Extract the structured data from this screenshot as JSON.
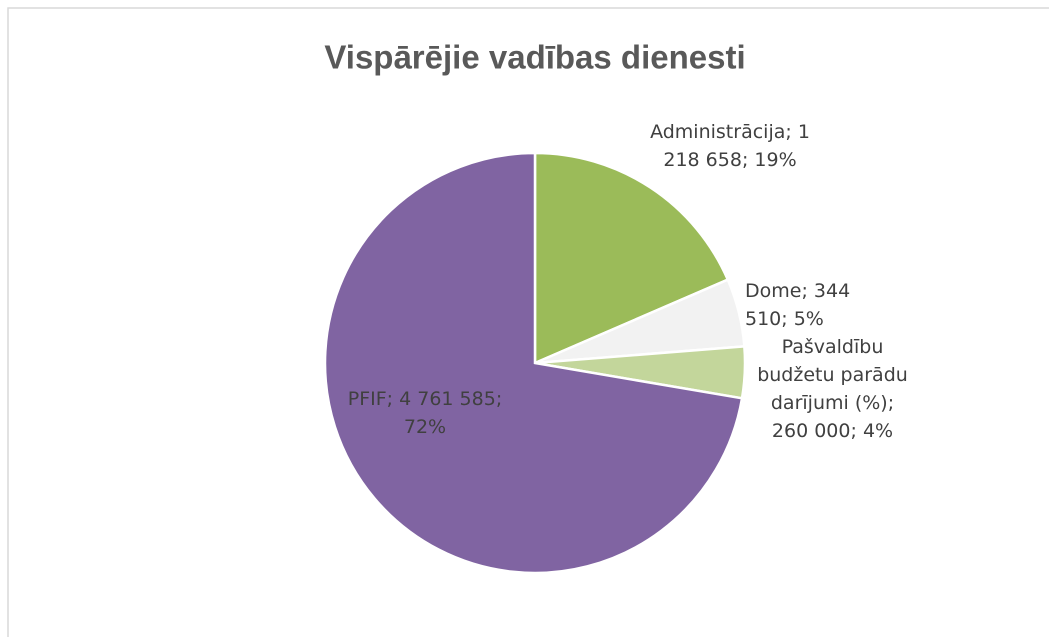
{
  "chart_data": {
    "type": "pie",
    "title": "Vispārējie vadības dienesti",
    "categories": [
      "Administrācija",
      "Dome",
      "Pašvaldību budžetu parādu darījumi (%)",
      "PFIF"
    ],
    "values": [
      1218658,
      344510,
      260000,
      4761585
    ],
    "value_labels": [
      "1 218 658",
      "344 510",
      "260 000",
      "4 761 585"
    ],
    "percent_labels": [
      "19%",
      "5%",
      "4%",
      "72%"
    ],
    "label_separator": "; ",
    "colors": [
      "#9bbb59",
      "#f2f2f2",
      "#c3d69b",
      "#8064a2"
    ]
  }
}
